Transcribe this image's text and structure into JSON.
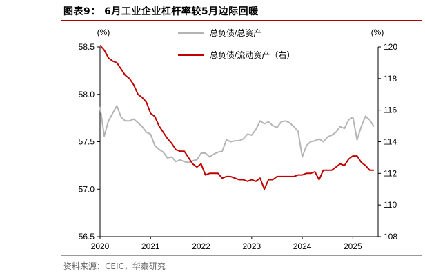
{
  "header": {
    "title": "图表9： 6月工业企业杠杆率较5月边际回暖"
  },
  "footer": {
    "source": "资料来源：CEIC，华泰研究"
  },
  "chart_data": {
    "type": "line",
    "x_ticks": [
      "2020",
      "2021",
      "2022",
      "2023",
      "2024",
      "2025"
    ],
    "left_axis": {
      "unit": "(%)",
      "ylim": [
        56.5,
        58.5
      ],
      "ticks": [
        "58.5",
        "58.0",
        "57.5",
        "57.0",
        "56.5"
      ]
    },
    "right_axis": {
      "unit": "(%)",
      "ylim": [
        108,
        120
      ],
      "ticks": [
        "120",
        "118",
        "116",
        "114",
        "112",
        "110",
        "108"
      ]
    },
    "legend_placement": "top-center",
    "series": [
      {
        "name": "总负债/总资产",
        "axis": "left",
        "color": "#b4b4b4",
        "x": [
          "2020-01",
          "2020-02",
          "2020-03",
          "2020-04",
          "2020-05",
          "2020-06",
          "2020-07",
          "2020-08",
          "2020-09",
          "2020-10",
          "2020-11",
          "2020-12",
          "2021-01",
          "2021-02",
          "2021-03",
          "2021-04",
          "2021-05",
          "2021-06",
          "2021-07",
          "2021-08",
          "2021-09",
          "2021-10",
          "2021-11",
          "2021-12",
          "2022-01",
          "2022-02",
          "2022-03",
          "2022-04",
          "2022-05",
          "2022-06",
          "2022-07",
          "2022-08",
          "2022-09",
          "2022-10",
          "2022-11",
          "2022-12",
          "2023-01",
          "2023-02",
          "2023-03",
          "2023-04",
          "2023-05",
          "2023-06",
          "2023-07",
          "2023-08",
          "2023-09",
          "2023-10",
          "2023-11",
          "2023-12",
          "2024-01",
          "2024-02",
          "2024-03",
          "2024-04",
          "2024-05",
          "2024-06",
          "2024-07",
          "2024-08",
          "2024-09",
          "2024-10",
          "2024-11",
          "2024-12",
          "2025-01",
          "2025-02",
          "2025-03",
          "2025-04",
          "2025-05",
          "2025-06"
        ],
        "values": [
          57.87,
          57.56,
          57.72,
          57.8,
          57.88,
          57.76,
          57.72,
          57.72,
          57.74,
          57.7,
          57.66,
          57.6,
          57.58,
          57.46,
          57.42,
          57.39,
          57.33,
          57.34,
          57.29,
          57.31,
          57.29,
          57.28,
          57.3,
          57.31,
          57.38,
          57.38,
          57.34,
          57.37,
          57.39,
          57.4,
          57.52,
          57.5,
          57.51,
          57.51,
          57.53,
          57.58,
          57.57,
          57.63,
          57.72,
          57.69,
          57.71,
          57.67,
          57.65,
          57.71,
          57.72,
          57.7,
          57.66,
          57.61,
          57.34,
          57.46,
          57.5,
          57.51,
          57.53,
          57.5,
          57.55,
          57.57,
          57.6,
          57.66,
          57.64,
          57.73,
          57.76,
          57.52,
          57.66,
          57.77,
          57.73,
          57.66
        ]
      },
      {
        "name": "总负债/流动资产（右）",
        "axis": "right",
        "color": "#c00000",
        "x": [
          "2020-01",
          "2020-02",
          "2020-03",
          "2020-04",
          "2020-05",
          "2020-06",
          "2020-07",
          "2020-08",
          "2020-09",
          "2020-10",
          "2020-11",
          "2020-12",
          "2021-01",
          "2021-02",
          "2021-03",
          "2021-04",
          "2021-05",
          "2021-06",
          "2021-07",
          "2021-08",
          "2021-09",
          "2021-10",
          "2021-11",
          "2021-12",
          "2022-01",
          "2022-02",
          "2022-03",
          "2022-04",
          "2022-05",
          "2022-06",
          "2022-07",
          "2022-08",
          "2022-09",
          "2022-10",
          "2022-11",
          "2022-12",
          "2023-01",
          "2023-02",
          "2023-03",
          "2023-04",
          "2023-05",
          "2023-06",
          "2023-07",
          "2023-08",
          "2023-09",
          "2023-10",
          "2023-11",
          "2023-12",
          "2024-01",
          "2024-02",
          "2024-03",
          "2024-04",
          "2024-05",
          "2024-06",
          "2024-07",
          "2024-08",
          "2024-09",
          "2024-10",
          "2024-11",
          "2024-12",
          "2025-01",
          "2025-02",
          "2025-03",
          "2025-04",
          "2025-05",
          "2025-06"
        ],
        "values": [
          120.1,
          119.8,
          119.3,
          119.1,
          119.0,
          118.6,
          118.2,
          118.0,
          117.6,
          117.0,
          116.8,
          116.5,
          115.8,
          115.6,
          115.0,
          114.6,
          114.2,
          113.9,
          113.5,
          113.4,
          113.4,
          113.0,
          112.6,
          112.4,
          112.6,
          111.9,
          112.0,
          112.0,
          112.0,
          111.7,
          111.8,
          111.8,
          111.7,
          111.6,
          111.6,
          111.5,
          111.6,
          111.5,
          111.7,
          111.0,
          111.6,
          111.6,
          111.8,
          111.8,
          111.8,
          111.8,
          111.8,
          111.9,
          111.9,
          112.0,
          112.0,
          112.1,
          111.6,
          112.2,
          112.2,
          112.2,
          112.4,
          112.6,
          112.5,
          112.9,
          113.1,
          113.1,
          112.7,
          112.5,
          112.2,
          112.2
        ]
      }
    ]
  }
}
